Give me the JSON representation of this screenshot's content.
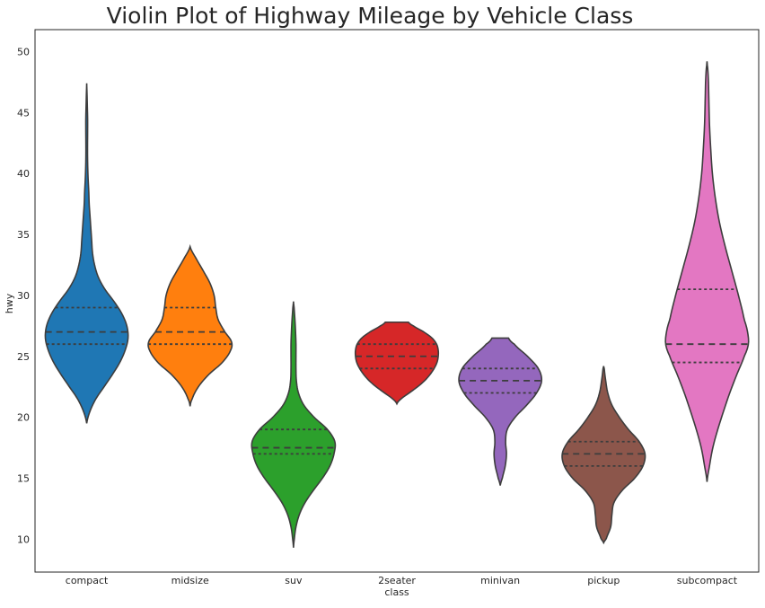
{
  "chart_data": {
    "type": "violin",
    "title": "Violin Plot of Highway Mileage by Vehicle Class",
    "xlabel": "class",
    "ylabel": "hwy",
    "ylim": [
      7.3,
      51.8
    ],
    "yticks": [
      10,
      15,
      20,
      25,
      30,
      35,
      40,
      45,
      50
    ],
    "grid": false,
    "inner": "quartile",
    "categories": [
      "compact",
      "midsize",
      "suv",
      "2seater",
      "minivan",
      "pickup",
      "subcompact"
    ],
    "colors": [
      "#1f77b4",
      "#ff7f0e",
      "#2ca02c",
      "#d62728",
      "#9467bd",
      "#8c564b",
      "#e377c2"
    ],
    "series": [
      {
        "name": "compact",
        "quartiles": [
          26,
          27,
          29
        ],
        "range": [
          19.5,
          47.4
        ],
        "profile": [
          [
            19.5,
            0.0
          ],
          [
            20.5,
            0.08
          ],
          [
            21.5,
            0.22
          ],
          [
            22.5,
            0.42
          ],
          [
            23.5,
            0.62
          ],
          [
            24.5,
            0.8
          ],
          [
            25.5,
            0.93
          ],
          [
            26.5,
            1.0
          ],
          [
            27.5,
            0.97
          ],
          [
            28.5,
            0.85
          ],
          [
            29.5,
            0.66
          ],
          [
            30.5,
            0.44
          ],
          [
            31.5,
            0.28
          ],
          [
            32.5,
            0.19
          ],
          [
            33.5,
            0.14
          ],
          [
            34.5,
            0.12
          ],
          [
            35.5,
            0.1
          ],
          [
            36.5,
            0.08
          ],
          [
            37.5,
            0.06
          ],
          [
            38.5,
            0.05
          ],
          [
            39.5,
            0.035
          ],
          [
            40.5,
            0.025
          ],
          [
            41.5,
            0.02
          ],
          [
            42.5,
            0.02
          ],
          [
            43.5,
            0.022
          ],
          [
            44.5,
            0.022
          ],
          [
            45.5,
            0.015
          ],
          [
            46.5,
            0.008
          ],
          [
            47.4,
            0.0
          ]
        ]
      },
      {
        "name": "midsize",
        "quartiles": [
          26,
          27,
          29
        ],
        "range": [
          20.9,
          34.0
        ],
        "profile": [
          [
            20.9,
            0.0
          ],
          [
            21.5,
            0.05
          ],
          [
            22.5,
            0.2
          ],
          [
            23.5,
            0.45
          ],
          [
            24.5,
            0.78
          ],
          [
            25.5,
            0.98
          ],
          [
            26.2,
            1.0
          ],
          [
            27.0,
            0.84
          ],
          [
            28.0,
            0.68
          ],
          [
            29.0,
            0.62
          ],
          [
            30.0,
            0.58
          ],
          [
            31.0,
            0.48
          ],
          [
            32.0,
            0.32
          ],
          [
            33.0,
            0.15
          ],
          [
            34.0,
            0.0
          ]
        ]
      },
      {
        "name": "suv",
        "quartiles": [
          17,
          17.5,
          19
        ],
        "range": [
          9.3,
          29.5
        ],
        "profile": [
          [
            9.3,
            0.0
          ],
          [
            10.0,
            0.02
          ],
          [
            11.0,
            0.06
          ],
          [
            12.0,
            0.14
          ],
          [
            13.0,
            0.28
          ],
          [
            14.0,
            0.48
          ],
          [
            15.0,
            0.7
          ],
          [
            16.0,
            0.88
          ],
          [
            17.0,
            0.98
          ],
          [
            18.0,
            1.0
          ],
          [
            19.0,
            0.82
          ],
          [
            20.0,
            0.5
          ],
          [
            21.0,
            0.25
          ],
          [
            22.0,
            0.12
          ],
          [
            23.0,
            0.07
          ],
          [
            24.0,
            0.06
          ],
          [
            25.0,
            0.06
          ],
          [
            26.0,
            0.06
          ],
          [
            27.0,
            0.05
          ],
          [
            28.0,
            0.035
          ],
          [
            29.0,
            0.015
          ],
          [
            29.5,
            0.0
          ]
        ]
      },
      {
        "name": "2seater",
        "quartiles": [
          24,
          25,
          26
        ],
        "range": [
          21.1,
          27.8
        ],
        "profile": [
          [
            21.1,
            0.0
          ],
          [
            21.5,
            0.1
          ],
          [
            22.0,
            0.3
          ],
          [
            22.5,
            0.5
          ],
          [
            23.0,
            0.67
          ],
          [
            23.5,
            0.8
          ],
          [
            24.0,
            0.9
          ],
          [
            24.5,
            0.97
          ],
          [
            25.0,
            1.0
          ],
          [
            25.5,
            1.0
          ],
          [
            26.0,
            0.96
          ],
          [
            26.5,
            0.85
          ],
          [
            27.0,
            0.65
          ],
          [
            27.5,
            0.4
          ],
          [
            27.8,
            0.28
          ]
        ]
      },
      {
        "name": "minivan",
        "quartiles": [
          22,
          23,
          24
        ],
        "range": [
          14.4,
          26.5
        ],
        "profile": [
          [
            14.4,
            0.0
          ],
          [
            15.0,
            0.05
          ],
          [
            16.0,
            0.12
          ],
          [
            17.0,
            0.15
          ],
          [
            18.0,
            0.13
          ],
          [
            19.0,
            0.17
          ],
          [
            20.0,
            0.36
          ],
          [
            21.0,
            0.64
          ],
          [
            22.0,
            0.88
          ],
          [
            23.0,
            1.0
          ],
          [
            24.0,
            0.92
          ],
          [
            25.0,
            0.66
          ],
          [
            26.0,
            0.34
          ],
          [
            26.5,
            0.2
          ]
        ]
      },
      {
        "name": "pickup",
        "quartiles": [
          16,
          17,
          18
        ],
        "range": [
          9.7,
          24.2
        ],
        "profile": [
          [
            9.7,
            0.0
          ],
          [
            10.0,
            0.06
          ],
          [
            11.0,
            0.17
          ],
          [
            12.0,
            0.2
          ],
          [
            13.0,
            0.25
          ],
          [
            14.0,
            0.45
          ],
          [
            15.0,
            0.75
          ],
          [
            16.0,
            0.95
          ],
          [
            17.0,
            1.0
          ],
          [
            18.0,
            0.86
          ],
          [
            19.0,
            0.6
          ],
          [
            20.0,
            0.38
          ],
          [
            21.0,
            0.2
          ],
          [
            22.0,
            0.1
          ],
          [
            23.0,
            0.05
          ],
          [
            24.0,
            0.015
          ],
          [
            24.2,
            0.0
          ]
        ]
      },
      {
        "name": "subcompact",
        "quartiles": [
          24.5,
          26,
          30.5
        ],
        "range": [
          14.7,
          49.2
        ],
        "profile": [
          [
            14.7,
            0.0
          ],
          [
            16.0,
            0.06
          ],
          [
            17.5,
            0.14
          ],
          [
            19.0,
            0.26
          ],
          [
            20.5,
            0.4
          ],
          [
            22.0,
            0.55
          ],
          [
            23.5,
            0.72
          ],
          [
            25.0,
            0.9
          ],
          [
            26.0,
            1.0
          ],
          [
            27.0,
            0.98
          ],
          [
            28.0,
            0.9
          ],
          [
            30.0,
            0.76
          ],
          [
            32.0,
            0.6
          ],
          [
            34.0,
            0.44
          ],
          [
            36.0,
            0.3
          ],
          [
            38.0,
            0.2
          ],
          [
            40.0,
            0.13
          ],
          [
            42.0,
            0.09
          ],
          [
            44.0,
            0.06
          ],
          [
            46.0,
            0.045
          ],
          [
            47.5,
            0.035
          ],
          [
            48.5,
            0.02
          ],
          [
            49.2,
            0.0
          ]
        ]
      }
    ]
  }
}
